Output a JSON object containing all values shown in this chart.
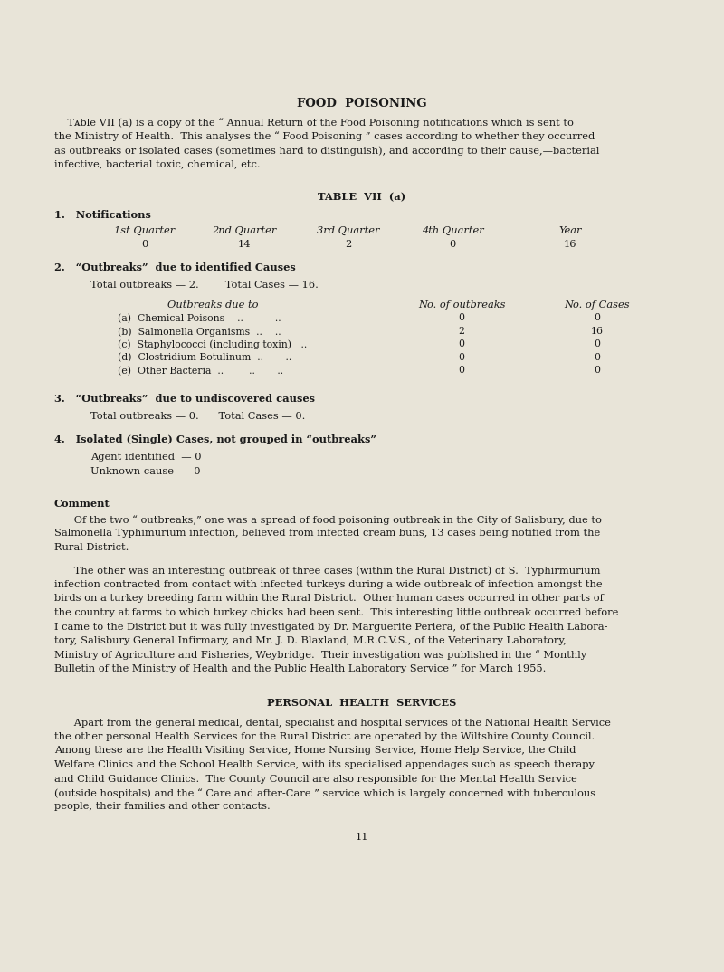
{
  "bg_color": "#e8e4d8",
  "text_color": "#1a1a1a",
  "page_title": "FOOD  POISONING",
  "intro_text": "TABLE VII (a) is a copy of the “ Annual Return of the Food Poisoning notifications which is sent to the Ministry of Health.  This analyses the “ Food Poisoning ” cases according to whether they occurred as outbreaks or isolated cases (sometimes hard to distinguish), and according to their cause,—bacterial infective, bacterial toxic, chemical, etc.",
  "table_title": "TABLE  VII  (a)",
  "section1_title": "1.   Notifications",
  "notif_headers": [
    "1st Quarter",
    "2nd Quarter",
    "3rd Quarter",
    "4th Quarter",
    "Year"
  ],
  "notif_values": [
    "0",
    "14",
    "2",
    "0",
    "16"
  ],
  "section2_title": "2.   “Outbreaks”  due to identified Causes",
  "section2_total": "Total outbreaks — 2.        Total Cases — 16.",
  "outbreaks_col_headers": [
    "Outbreaks due to",
    "No. of outbreaks",
    "No. of Cases"
  ],
  "outbreak_rows": [
    [
      "(a)  Chemical Poisons          ..          ..",
      "0",
      "0"
    ],
    [
      "(b)  Salmonella Organisms   ..          ..",
      "2",
      "16"
    ],
    [
      "(c)  Staphylococci (including toxin)    ..",
      "0",
      "0"
    ],
    [
      "(d)  Clostridium Botulinum  ..           ..",
      "0",
      "0"
    ],
    [
      "(e)  Other Bacteria  ..           ..          ..",
      "0",
      "0"
    ]
  ],
  "section3_title": "3.   “Outbreaks”  due to undiscovered causes",
  "section3_total": "Total outbreaks — 0.      Total Cases — 0.",
  "section4_title": "4.   Isolated (Single) Cases, not grouped in “outbreaks”",
  "section4_lines": [
    "Agent identified  — 0",
    "Unknown cause  — 0"
  ],
  "comment_title": "Comment",
  "comment_para1": "Of the two “ outbreaks,” one was a spread of food poisoning outbreak in the City of Salisbury, due to Salmonella Typhimurium infection, believed from infected cream buns, 13 cases being notified from the Rural District.",
  "comment_para2": "The other was an interesting outbreak of three cases (within the Rural District) of S.  Typhirmurium infection contracted from contact with infected turkeys during a wide outbreak of infection amongst the birds on a turkey breeding farm within the Rural District.  Other human cases occurred in other parts of the country at farms to which turkey chicks had been sent.  This interesting little outbreak occurred before I came to the District but it was fully investigated by Dr. Marguerite Periera, of the Public Health Labora­tory, Salisbury General Infirmary, and Mr. J. D. Blaxland, M.R.C.V.S., of the Veterinary Laboratory, Ministry of Agriculture and Fisheries, Weybridge.  Their investigation was published in the “ Monthly Bulletin of the Ministry of Health and the Public Health Laboratory Service ” for March 1955.",
  "section5_title": "PERSONAL  HEALTH  SERVICES",
  "section5_para": "Apart from the general medical, dental, specialist and hospital services of the National Health Service the other personal Health Services for the Rural District are operated by the Wiltshire County Council.  Among these are the Health Visiting Service, Home Nursing Service, Home Help Service, the Child Welfare Clinics and the School Health Service, with its specialised appendages such as speech therapy and Child Guidance Clinics.  The County Council are also responsible for the Mental Health Service (outside hospitals) and the “ Care and after-Care ” service which is largely concerned with tuberculous people, their families and other contacts.",
  "page_number": "11",
  "fig_width": 8.0,
  "fig_height": 10.74,
  "dpi": 100
}
